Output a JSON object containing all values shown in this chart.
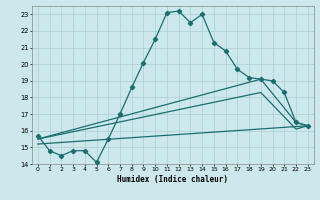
{
  "xlabel": "Humidex (Indice chaleur)",
  "bg_color": "#cce8ec",
  "grid_color": "#aacfd4",
  "line_color": "#1a6e6e",
  "xlim": [
    -0.5,
    23.5
  ],
  "ylim": [
    14,
    23.5
  ],
  "yticks": [
    14,
    15,
    16,
    17,
    18,
    19,
    20,
    21,
    22,
    23
  ],
  "xticks": [
    0,
    1,
    2,
    3,
    4,
    5,
    6,
    7,
    8,
    9,
    10,
    11,
    12,
    13,
    14,
    15,
    16,
    17,
    18,
    19,
    20,
    21,
    22,
    23
  ],
  "series1_x": [
    0,
    1,
    2,
    3,
    4,
    5,
    6,
    7,
    8,
    9,
    10,
    11,
    12,
    13,
    14,
    15,
    16,
    17,
    18,
    19,
    20,
    21,
    22,
    23
  ],
  "series1_y": [
    15.7,
    14.8,
    14.5,
    14.8,
    14.8,
    14.1,
    15.5,
    17.0,
    18.6,
    20.1,
    21.5,
    23.1,
    23.2,
    22.5,
    23.0,
    21.3,
    20.8,
    19.7,
    19.2,
    19.1,
    19.0,
    18.3,
    16.5,
    16.3
  ],
  "series2_x": [
    0,
    19,
    22,
    23
  ],
  "series2_y": [
    15.5,
    19.1,
    16.5,
    16.3
  ],
  "series3_x": [
    0,
    19,
    22,
    23
  ],
  "series3_y": [
    15.5,
    18.3,
    16.1,
    16.3
  ],
  "series4_x": [
    0,
    23
  ],
  "series4_y": [
    15.2,
    16.3
  ]
}
